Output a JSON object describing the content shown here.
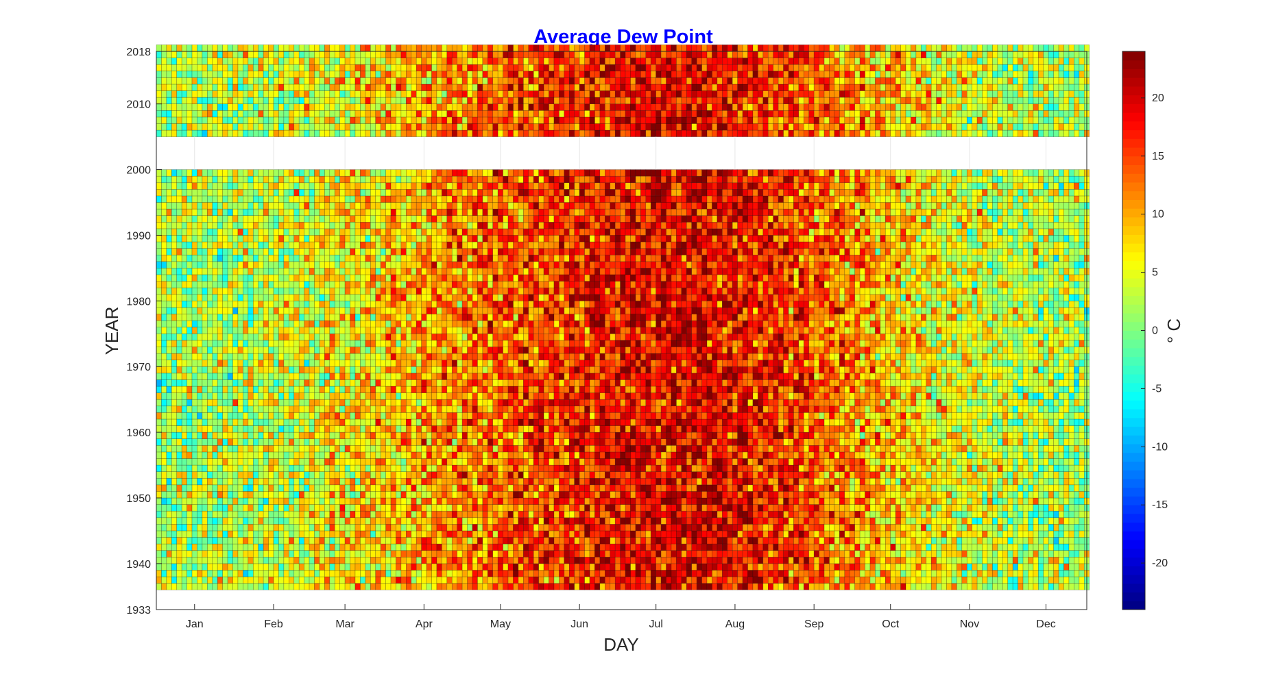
{
  "chart_data": {
    "type": "heatmap",
    "title": "Average Dew Point",
    "xlabel": "DAY",
    "ylabel": "YEAR",
    "colorbar_label": "° C",
    "x_tick_labels": [
      "Jan",
      "Feb",
      "Mar",
      "Apr",
      "May",
      "Jun",
      "Jul",
      "Aug",
      "Sep",
      "Oct",
      "Nov",
      "Dec"
    ],
    "x_tick_days": [
      15,
      46,
      74,
      105,
      135,
      166,
      196,
      227,
      258,
      288,
      319,
      349
    ],
    "xlim": [
      0,
      365
    ],
    "y_ticks": [
      1933,
      1940,
      1950,
      1960,
      1970,
      1980,
      1990,
      2000,
      2010,
      2018
    ],
    "ylim": [
      1933,
      2018
    ],
    "colorbar_ticks": [
      -20,
      -15,
      -10,
      -5,
      0,
      5,
      10,
      15,
      20
    ],
    "color_limits": [
      -24,
      24
    ],
    "colormap": "jet",
    "year_ranges_with_data": [
      [
        1936,
        1999
      ],
      [
        2005,
        2018
      ]
    ],
    "missing_data_gap_years": [
      2000,
      2004
    ],
    "seasonal_profile": {
      "days": [
        1,
        32,
        60,
        91,
        121,
        152,
        182,
        213,
        244,
        274,
        305,
        335,
        365
      ],
      "mean_dew_point": [
        2,
        3,
        5,
        8,
        12,
        15,
        18,
        19,
        16,
        11,
        6,
        3,
        2
      ]
    }
  }
}
